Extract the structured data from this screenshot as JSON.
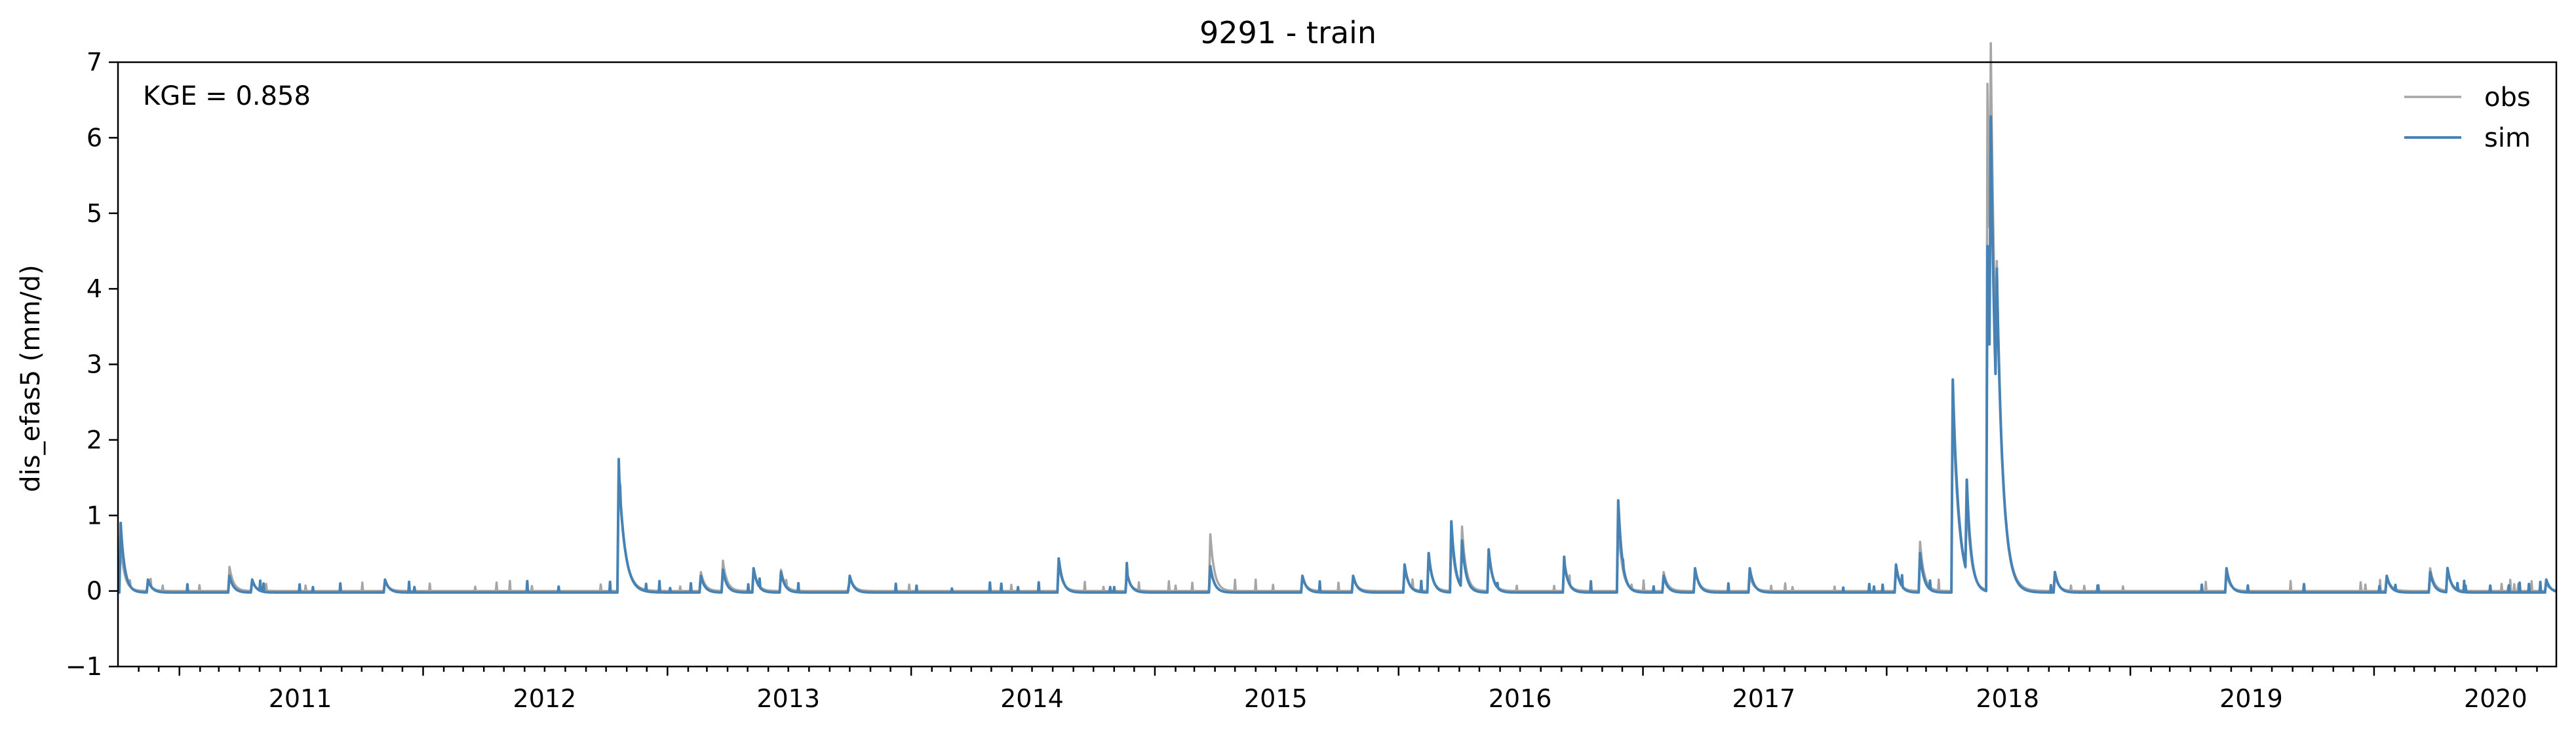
{
  "chart_data": {
    "type": "line",
    "title": "9291 - train",
    "xlabel": "",
    "ylabel": "dis_efas5 (mm/d)",
    "annotation": "KGE = 0.858",
    "x_range": [
      "2010-10-01",
      "2020-09-30"
    ],
    "ylim": [
      -1,
      7
    ],
    "yticks": [
      -1,
      0,
      1,
      2,
      3,
      4,
      5,
      6,
      7
    ],
    "xticks": [
      "2011",
      "2012",
      "2013",
      "2014",
      "2015",
      "2016",
      "2017",
      "2018",
      "2019",
      "2020"
    ],
    "grid": false,
    "legend_position": "top-right",
    "baseline": {
      "obs": 0.0,
      "sim": -0.02
    },
    "series": [
      {
        "name": "obs",
        "color": "#a6a6a6",
        "events": [
          {
            "date": "2010-10-05",
            "value": 0.6
          },
          {
            "date": "2010-11-15",
            "value": 0.12
          },
          {
            "date": "2011-03-17",
            "value": 0.32
          },
          {
            "date": "2011-04-20",
            "value": 0.12
          },
          {
            "date": "2011-11-05",
            "value": 0.12
          },
          {
            "date": "2012-10-20",
            "value": 1.55
          },
          {
            "date": "2013-02-20",
            "value": 0.25
          },
          {
            "date": "2013-03-25",
            "value": 0.4
          },
          {
            "date": "2013-05-10",
            "value": 0.3
          },
          {
            "date": "2013-06-20",
            "value": 0.28
          },
          {
            "date": "2013-10-01",
            "value": 0.2
          },
          {
            "date": "2014-08-10",
            "value": 0.35
          },
          {
            "date": "2014-11-20",
            "value": 0.22
          },
          {
            "date": "2015-03-25",
            "value": 0.75
          },
          {
            "date": "2015-08-10",
            "value": 0.18
          },
          {
            "date": "2015-10-25",
            "value": 0.18
          },
          {
            "date": "2016-01-10",
            "value": 0.3
          },
          {
            "date": "2016-02-15",
            "value": 0.45
          },
          {
            "date": "2016-03-20",
            "value": 0.75
          },
          {
            "date": "2016-04-05",
            "value": 0.8
          },
          {
            "date": "2016-05-15",
            "value": 0.5
          },
          {
            "date": "2016-09-05",
            "value": 0.35
          },
          {
            "date": "2016-11-25",
            "value": 0.9
          },
          {
            "date": "2017-02-01",
            "value": 0.25
          },
          {
            "date": "2017-03-20",
            "value": 0.3
          },
          {
            "date": "2017-06-10",
            "value": 0.2
          },
          {
            "date": "2018-01-15",
            "value": 0.3
          },
          {
            "date": "2018-02-20",
            "value": 0.65
          },
          {
            "date": "2018-04-10",
            "value": 2.55
          },
          {
            "date": "2018-05-01",
            "value": 1.0
          },
          {
            "date": "2018-06-01",
            "value": 6.7
          },
          {
            "date": "2018-06-06",
            "value": 3.4
          },
          {
            "date": "2018-06-15",
            "value": 1.7
          },
          {
            "date": "2018-09-10",
            "value": 0.2
          },
          {
            "date": "2019-05-25",
            "value": 0.22
          },
          {
            "date": "2020-01-20",
            "value": 0.2
          },
          {
            "date": "2020-03-25",
            "value": 0.3
          },
          {
            "date": "2020-04-20",
            "value": 0.28
          },
          {
            "date": "2020-09-15",
            "value": 0.1
          }
        ]
      },
      {
        "name": "sim",
        "color": "#4682b4",
        "events": [
          {
            "date": "2010-10-05",
            "value": 0.9
          },
          {
            "date": "2010-11-15",
            "value": 0.15
          },
          {
            "date": "2011-03-17",
            "value": 0.2
          },
          {
            "date": "2011-04-20",
            "value": 0.15
          },
          {
            "date": "2011-11-05",
            "value": 0.15
          },
          {
            "date": "2012-10-20",
            "value": 1.62
          },
          {
            "date": "2013-02-20",
            "value": 0.2
          },
          {
            "date": "2013-03-25",
            "value": 0.28
          },
          {
            "date": "2013-05-10",
            "value": 0.3
          },
          {
            "date": "2013-06-20",
            "value": 0.25
          },
          {
            "date": "2013-10-01",
            "value": 0.2
          },
          {
            "date": "2014-08-10",
            "value": 0.43
          },
          {
            "date": "2014-11-20",
            "value": 0.25
          },
          {
            "date": "2015-03-25",
            "value": 0.33
          },
          {
            "date": "2015-08-10",
            "value": 0.2
          },
          {
            "date": "2015-10-25",
            "value": 0.2
          },
          {
            "date": "2016-01-10",
            "value": 0.35
          },
          {
            "date": "2016-02-15",
            "value": 0.5
          },
          {
            "date": "2016-03-20",
            "value": 0.92
          },
          {
            "date": "2016-04-05",
            "value": 0.6
          },
          {
            "date": "2016-05-15",
            "value": 0.55
          },
          {
            "date": "2016-09-05",
            "value": 0.4
          },
          {
            "date": "2016-11-25",
            "value": 1.2
          },
          {
            "date": "2017-02-01",
            "value": 0.2
          },
          {
            "date": "2017-03-20",
            "value": 0.3
          },
          {
            "date": "2017-06-10",
            "value": 0.3
          },
          {
            "date": "2018-01-15",
            "value": 0.35
          },
          {
            "date": "2018-02-20",
            "value": 0.5
          },
          {
            "date": "2018-04-10",
            "value": 2.8
          },
          {
            "date": "2018-05-01",
            "value": 1.2
          },
          {
            "date": "2018-06-01",
            "value": 4.55
          },
          {
            "date": "2018-06-06",
            "value": 3.65
          },
          {
            "date": "2018-06-15",
            "value": 1.95
          },
          {
            "date": "2018-09-10",
            "value": 0.25
          },
          {
            "date": "2019-05-25",
            "value": 0.3
          },
          {
            "date": "2020-01-20",
            "value": 0.2
          },
          {
            "date": "2020-03-25",
            "value": 0.25
          },
          {
            "date": "2020-04-20",
            "value": 0.3
          },
          {
            "date": "2020-09-15",
            "value": 0.15
          }
        ]
      }
    ]
  }
}
